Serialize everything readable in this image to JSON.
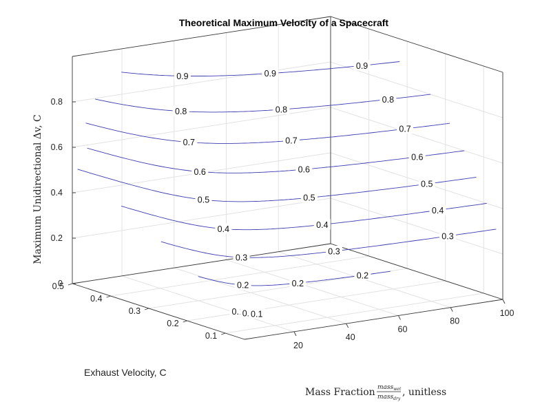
{
  "chart_data": {
    "type": "line",
    "title": "Theoretical Maximum Velocity of a Spacecraft",
    "xlabel": {
      "prefix": "Mass Fraction ",
      "numerator": "mass",
      "numerator_sub": "wet",
      "denominator": "mass",
      "denominator_sub": "dry",
      "suffix": ", unitless"
    },
    "ylabel": "Exhaust Velocity, C",
    "zlabel": "Maximum Unidirectional Δv, C",
    "xlim": [
      1,
      100
    ],
    "ylim": [
      0.05,
      0.5
    ],
    "zlim": [
      0,
      1
    ],
    "xticks": [
      "20",
      "40",
      "60",
      "80",
      "100"
    ],
    "xtick_values": [
      20,
      40,
      60,
      80,
      100
    ],
    "yticks": [
      "0.1",
      "0.2",
      "0.3",
      "0.4",
      "0.5"
    ],
    "ytick_values": [
      0.1,
      0.2,
      0.3,
      0.4,
      0.5
    ],
    "zticks": [
      "0",
      "0.2",
      "0.4",
      "0.6",
      "0.8"
    ],
    "ztick_values": [
      0,
      0.2,
      0.4,
      0.6,
      0.8
    ],
    "contour_levels": [
      {
        "level": 0.1,
        "label": "0.1"
      },
      {
        "level": 0.2,
        "label": "0.2"
      },
      {
        "level": 0.3,
        "label": "0.3"
      },
      {
        "level": 0.4,
        "label": "0.4"
      },
      {
        "level": 0.5,
        "label": "0.5"
      },
      {
        "level": 0.6,
        "label": "0.6"
      },
      {
        "level": 0.7,
        "label": "0.7"
      },
      {
        "level": 0.8,
        "label": "0.8"
      },
      {
        "level": 0.9,
        "label": "0.9"
      }
    ],
    "view": "3d",
    "grid": true,
    "box": true,
    "line_color": "#3b3bb0"
  }
}
